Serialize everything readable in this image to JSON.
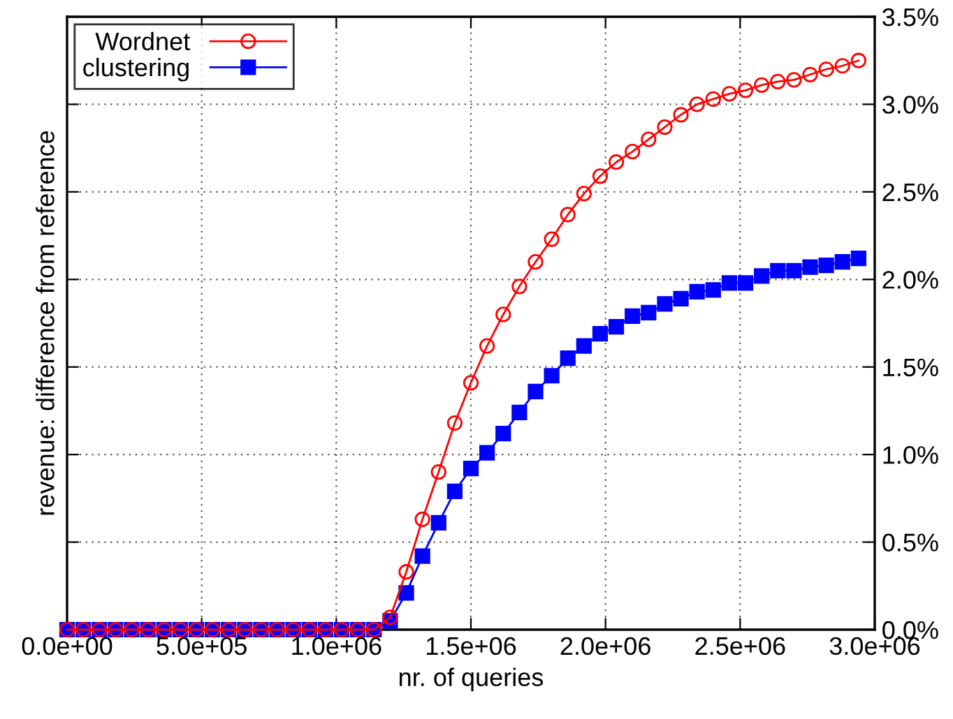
{
  "chart_data": {
    "type": "line",
    "xlabel": "nr. of queries",
    "ylabel": "revenue: difference from reference",
    "x": [
      0,
      60000,
      120000,
      180000,
      240000,
      300000,
      360000,
      420000,
      480000,
      540000,
      600000,
      660000,
      720000,
      780000,
      840000,
      900000,
      960000,
      1020000,
      1080000,
      1140000,
      1200000,
      1260000,
      1320000,
      1380000,
      1440000,
      1500000,
      1560000,
      1620000,
      1680000,
      1740000,
      1800000,
      1860000,
      1920000,
      1980000,
      2040000,
      2100000,
      2160000,
      2220000,
      2280000,
      2340000,
      2400000,
      2460000,
      2520000,
      2580000,
      2640000,
      2700000,
      2760000,
      2820000,
      2880000,
      2940000
    ],
    "series": [
      {
        "name": "Wordnet",
        "color": "#ff0000",
        "marker": "circle",
        "values": [
          0,
          0,
          0,
          0,
          0,
          0,
          0,
          0,
          0,
          0,
          0,
          0,
          0,
          0,
          0,
          0,
          0,
          0,
          0,
          0,
          0.07,
          0.33,
          0.63,
          0.9,
          1.18,
          1.41,
          1.62,
          1.8,
          1.96,
          2.1,
          2.23,
          2.37,
          2.49,
          2.59,
          2.67,
          2.73,
          2.8,
          2.87,
          2.94,
          3.0,
          3.03,
          3.06,
          3.08,
          3.11,
          3.13,
          3.14,
          3.17,
          3.2,
          3.22,
          3.25
        ]
      },
      {
        "name": "clustering",
        "color": "#0000ff",
        "marker": "square",
        "values": [
          0,
          0,
          0,
          0,
          0,
          0,
          0,
          0,
          0,
          0,
          0,
          0,
          0,
          0,
          0,
          0,
          0,
          0,
          0,
          0,
          0.05,
          0.21,
          0.42,
          0.61,
          0.79,
          0.92,
          1.01,
          1.12,
          1.24,
          1.36,
          1.45,
          1.55,
          1.62,
          1.69,
          1.73,
          1.79,
          1.81,
          1.86,
          1.89,
          1.93,
          1.94,
          1.98,
          1.98,
          2.02,
          2.05,
          2.05,
          2.07,
          2.08,
          2.1,
          2.12
        ]
      }
    ],
    "xlim": [
      0,
      3000000
    ],
    "xticks": [
      {
        "value": 0,
        "label": "0.0e+00"
      },
      {
        "value": 500000,
        "label": "5.0e+05"
      },
      {
        "value": 1000000,
        "label": "1.0e+06"
      },
      {
        "value": 1500000,
        "label": "1.5e+06"
      },
      {
        "value": 2000000,
        "label": "2.0e+06"
      },
      {
        "value": 2500000,
        "label": "2.5e+06"
      },
      {
        "value": 3000000,
        "label": "3.0e+06"
      }
    ],
    "ylim": [
      0,
      3.5
    ],
    "yticks": [
      {
        "value": 0,
        "label": "0.0%"
      },
      {
        "value": 0.5,
        "label": "0.5%"
      },
      {
        "value": 1,
        "label": "1.0%"
      },
      {
        "value": 1.5,
        "label": "1.5%"
      },
      {
        "value": 2,
        "label": "2.0%"
      },
      {
        "value": 2.5,
        "label": "2.5%"
      },
      {
        "value": 3,
        "label": "3.0%"
      },
      {
        "value": 3.5,
        "label": "3.5%"
      }
    ],
    "grid": true,
    "legend": "top left",
    "line_style": "solid"
  }
}
